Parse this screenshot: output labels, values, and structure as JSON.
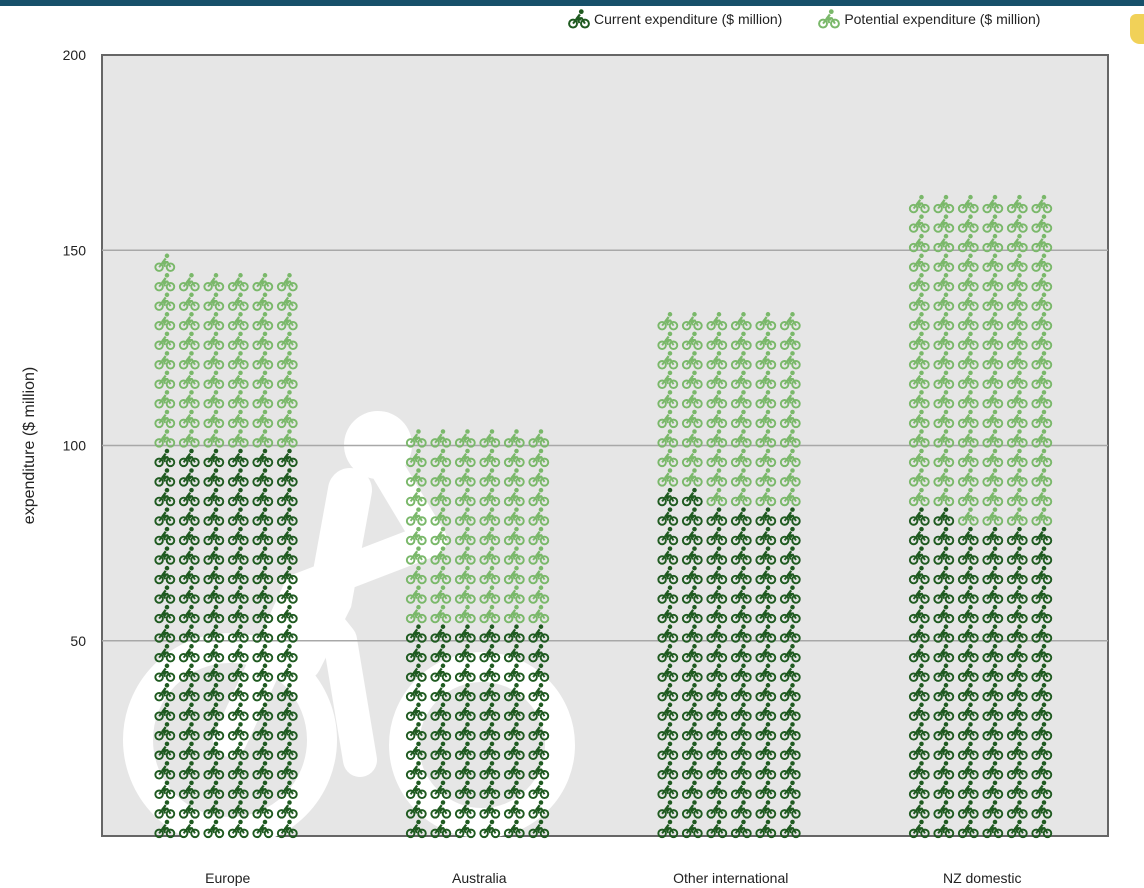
{
  "chart_data": {
    "type": "bar",
    "ylabel": "expenditure ($ million)",
    "ylim": [
      0,
      200
    ],
    "yticks": [
      50,
      100,
      150,
      200
    ],
    "grid": true,
    "legend_position": "top-right",
    "categories": [
      "Europe",
      "Australia",
      "Other international",
      "NZ domestic"
    ],
    "series": [
      {
        "name": "Current expenditure ($ million)",
        "values": [
          100,
          55,
          87,
          82
        ],
        "color": "#1f5a20"
      },
      {
        "name": "Potential expenditure ($ million)",
        "values": [
          146,
          105,
          135,
          165
        ],
        "color": "#7ab86a"
      }
    ],
    "icon": "bicycle-rider-icon",
    "plot_background": "#e6e6e6",
    "watermark_icon": "cyclist-silhouette"
  }
}
